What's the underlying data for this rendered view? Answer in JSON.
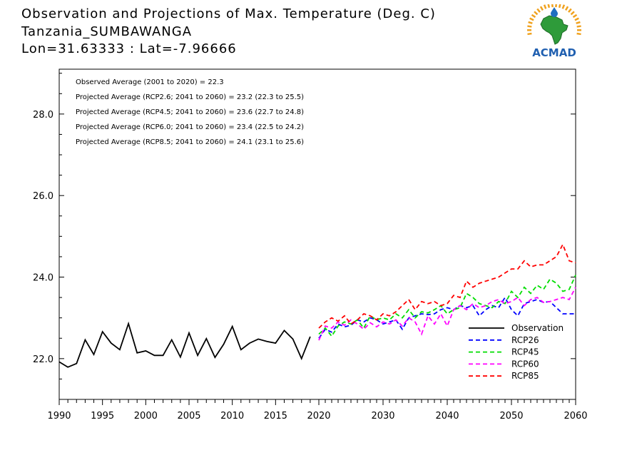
{
  "header": {
    "title": "Observation and Projections of Max. Temperature (Deg. C)",
    "station": "Tanzania_SUMBAWANGA",
    "coords": "Lon=31.63333 : Lat=-7.96666"
  },
  "logo": {
    "text": "ACMAD",
    "icon": "africa-map-sun-logo",
    "colors": {
      "africa": "#2e9b3a",
      "sun": "#f0a21f",
      "drop": "#1f6fc0",
      "text": "#1f5fb0"
    }
  },
  "stats": [
    "Observed Average (2001 to 2020) = 22.3",
    "Projected Average (RCP2.6; 2041 to 2060) = 23.2 (22.3 to 25.5)",
    "Projected Average (RCP4.5; 2041 to 2060) = 23.6 (22.7 to 24.8)",
    "Projected Average (RCP6.0; 2041 to 2060) = 23.4 (22.5 to 24.2)",
    "Projected Average (RCP8.5; 2041 to 2060) = 24.1 (23.1 to 25.6)"
  ],
  "chart_data": {
    "type": "line",
    "xlim": [
      1990,
      2060
    ],
    "ylim": [
      21.0,
      29.1
    ],
    "x_ticks_major": [
      {
        "value": 1990,
        "label": "1990"
      },
      {
        "value": 1995,
        "label": "1995"
      },
      {
        "value": 2000,
        "label": "2000"
      },
      {
        "value": 2005,
        "label": "2005"
      },
      {
        "value": 2010,
        "label": "2010"
      },
      {
        "value": 2015,
        "label": "2015"
      },
      {
        "value": 2020,
        "label": "2020"
      },
      {
        "value": 2030,
        "label": "2030"
      },
      {
        "value": 2040,
        "label": "2040"
      },
      {
        "value": 2050,
        "label": "2050"
      },
      {
        "value": 2060,
        "label": "2060"
      }
    ],
    "y_ticks": [
      {
        "value": 22,
        "label": "22.0"
      },
      {
        "value": 24,
        "label": "24.0"
      },
      {
        "value": 26,
        "label": "26.0"
      },
      {
        "value": 28,
        "label": "28.0"
      }
    ],
    "grid": false,
    "legend_position": "bottom-right",
    "series": [
      {
        "name": "Observation",
        "color": "#000000",
        "dashed": false,
        "x": [
          1990,
          1991,
          1992,
          1993,
          1994,
          1995,
          1996,
          1997,
          1998,
          1999,
          2000,
          2001,
          2002,
          2003,
          2004,
          2005,
          2006,
          2007,
          2008,
          2009,
          2010,
          2011,
          2012,
          2013,
          2014,
          2015,
          2016,
          2017,
          2018,
          2019
        ],
        "y": [
          21.92,
          21.79,
          21.88,
          22.46,
          22.1,
          22.66,
          22.38,
          22.22,
          22.86,
          22.14,
          22.19,
          22.08,
          22.08,
          22.46,
          22.04,
          22.63,
          22.08,
          22.49,
          22.03,
          22.35,
          22.79,
          22.22,
          22.38,
          22.48,
          22.42,
          22.38,
          22.69,
          22.48,
          22.0,
          22.54
        ]
      },
      {
        "name": "RCP26",
        "color": "#0000ff",
        "dashed": true,
        "x": [
          2020,
          2021,
          2022,
          2023,
          2024,
          2025,
          2026,
          2027,
          2028,
          2029,
          2030,
          2031,
          2032,
          2033,
          2034,
          2035,
          2036,
          2037,
          2038,
          2039,
          2040,
          2041,
          2042,
          2043,
          2044,
          2045,
          2046,
          2047,
          2048,
          2049,
          2050,
          2051,
          2052,
          2053,
          2054,
          2055,
          2056,
          2057,
          2058,
          2059,
          2060
        ],
        "y": [
          22.5,
          22.72,
          22.65,
          22.85,
          22.78,
          22.82,
          22.95,
          22.9,
          23.0,
          22.95,
          22.85,
          22.9,
          22.95,
          22.72,
          23.0,
          23.05,
          23.1,
          23.08,
          23.1,
          23.2,
          23.25,
          23.2,
          23.3,
          23.25,
          23.3,
          23.05,
          23.2,
          23.3,
          23.25,
          23.5,
          23.2,
          23.05,
          23.35,
          23.4,
          23.45,
          23.38,
          23.4,
          23.25,
          23.1,
          23.1,
          23.1
        ]
      },
      {
        "name": "RCP45",
        "color": "#00dd00",
        "dashed": true,
        "x": [
          2020,
          2021,
          2022,
          2023,
          2024,
          2025,
          2026,
          2027,
          2028,
          2029,
          2030,
          2031,
          2032,
          2033,
          2034,
          2035,
          2036,
          2037,
          2038,
          2039,
          2040,
          2041,
          2042,
          2043,
          2044,
          2045,
          2046,
          2047,
          2048,
          2049,
          2050,
          2051,
          2052,
          2053,
          2054,
          2055,
          2056,
          2057,
          2058,
          2059,
          2060
        ],
        "y": [
          22.6,
          22.75,
          22.55,
          22.8,
          22.9,
          22.85,
          22.95,
          22.75,
          23.05,
          22.95,
          23.0,
          22.95,
          23.1,
          23.0,
          23.2,
          23.0,
          23.15,
          23.12,
          23.2,
          23.3,
          23.1,
          23.2,
          23.25,
          23.6,
          23.5,
          23.35,
          23.3,
          23.25,
          23.4,
          23.35,
          23.65,
          23.5,
          23.75,
          23.6,
          23.8,
          23.7,
          23.95,
          23.85,
          23.65,
          23.7,
          24.05
        ]
      },
      {
        "name": "RCP60",
        "color": "#ff00ff",
        "dashed": true,
        "x": [
          2020,
          2021,
          2022,
          2023,
          2024,
          2025,
          2026,
          2027,
          2028,
          2029,
          2030,
          2031,
          2032,
          2033,
          2034,
          2035,
          2036,
          2037,
          2038,
          2039,
          2040,
          2041,
          2042,
          2043,
          2044,
          2045,
          2046,
          2047,
          2048,
          2049,
          2050,
          2051,
          2052,
          2053,
          2054,
          2055,
          2056,
          2057,
          2058,
          2059,
          2060
        ],
        "y": [
          22.45,
          22.8,
          22.75,
          22.9,
          22.82,
          22.95,
          22.85,
          22.72,
          22.88,
          22.78,
          22.9,
          22.85,
          22.95,
          22.8,
          23.0,
          22.9,
          22.6,
          23.05,
          22.85,
          23.1,
          22.8,
          23.2,
          23.3,
          23.2,
          23.35,
          23.25,
          23.3,
          23.4,
          23.45,
          23.35,
          23.4,
          23.5,
          23.3,
          23.45,
          23.5,
          23.38,
          23.4,
          23.45,
          23.5,
          23.45,
          23.75
        ]
      },
      {
        "name": "RCP85",
        "color": "#ff0000",
        "dashed": true,
        "x": [
          2020,
          2021,
          2022,
          2023,
          2024,
          2025,
          2026,
          2027,
          2028,
          2029,
          2030,
          2031,
          2032,
          2033,
          2034,
          2035,
          2036,
          2037,
          2038,
          2039,
          2040,
          2041,
          2042,
          2043,
          2044,
          2045,
          2046,
          2047,
          2048,
          2049,
          2050,
          2051,
          2052,
          2053,
          2054,
          2055,
          2056,
          2057,
          2058,
          2059,
          2060
        ],
        "y": [
          22.75,
          22.9,
          23.0,
          22.92,
          23.05,
          22.85,
          22.95,
          23.1,
          23.05,
          22.95,
          23.1,
          23.05,
          23.15,
          23.3,
          23.45,
          23.2,
          23.4,
          23.35,
          23.4,
          23.3,
          23.35,
          23.55,
          23.5,
          23.9,
          23.75,
          23.85,
          23.9,
          23.95,
          24.0,
          24.1,
          24.2,
          24.2,
          24.4,
          24.25,
          24.3,
          24.3,
          24.4,
          24.5,
          24.8,
          24.4,
          24.35
        ]
      }
    ]
  }
}
